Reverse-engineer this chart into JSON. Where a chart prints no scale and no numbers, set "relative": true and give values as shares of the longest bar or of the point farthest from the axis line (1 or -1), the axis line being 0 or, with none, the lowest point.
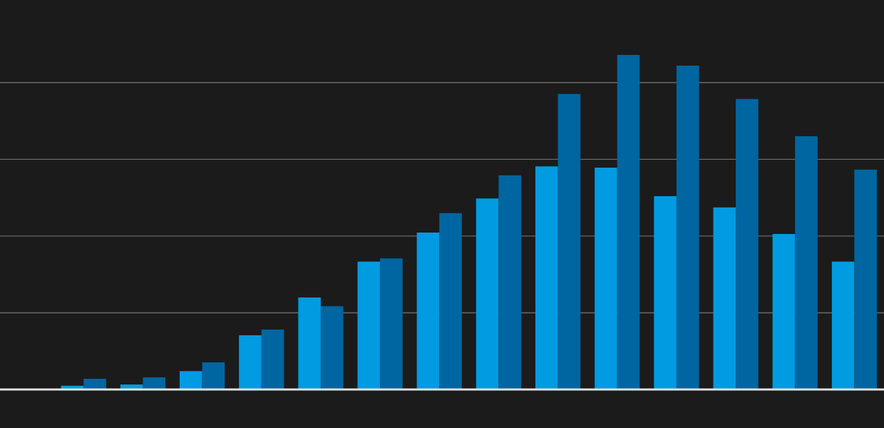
{
  "chart_data": {
    "type": "bar",
    "relative": true,
    "grid": "y",
    "categories": [
      null,
      null,
      null,
      null,
      null,
      null,
      null,
      null,
      null,
      null,
      null,
      null,
      null,
      null
    ],
    "series": [
      {
        "color": "#009be1",
        "values": [
          0.011,
          0.015,
          0.055,
          0.162,
          0.275,
          0.382,
          0.469,
          0.571,
          0.667,
          0.663,
          0.578,
          0.544,
          0.465,
          0.382
        ]
      },
      {
        "color": "#0066a1",
        "values": [
          0.032,
          0.036,
          0.081,
          0.179,
          0.249,
          0.392,
          0.527,
          0.64,
          0.883,
          1,
          0.968,
          0.868,
          0.757,
          0.657
        ]
      }
    ]
  }
}
